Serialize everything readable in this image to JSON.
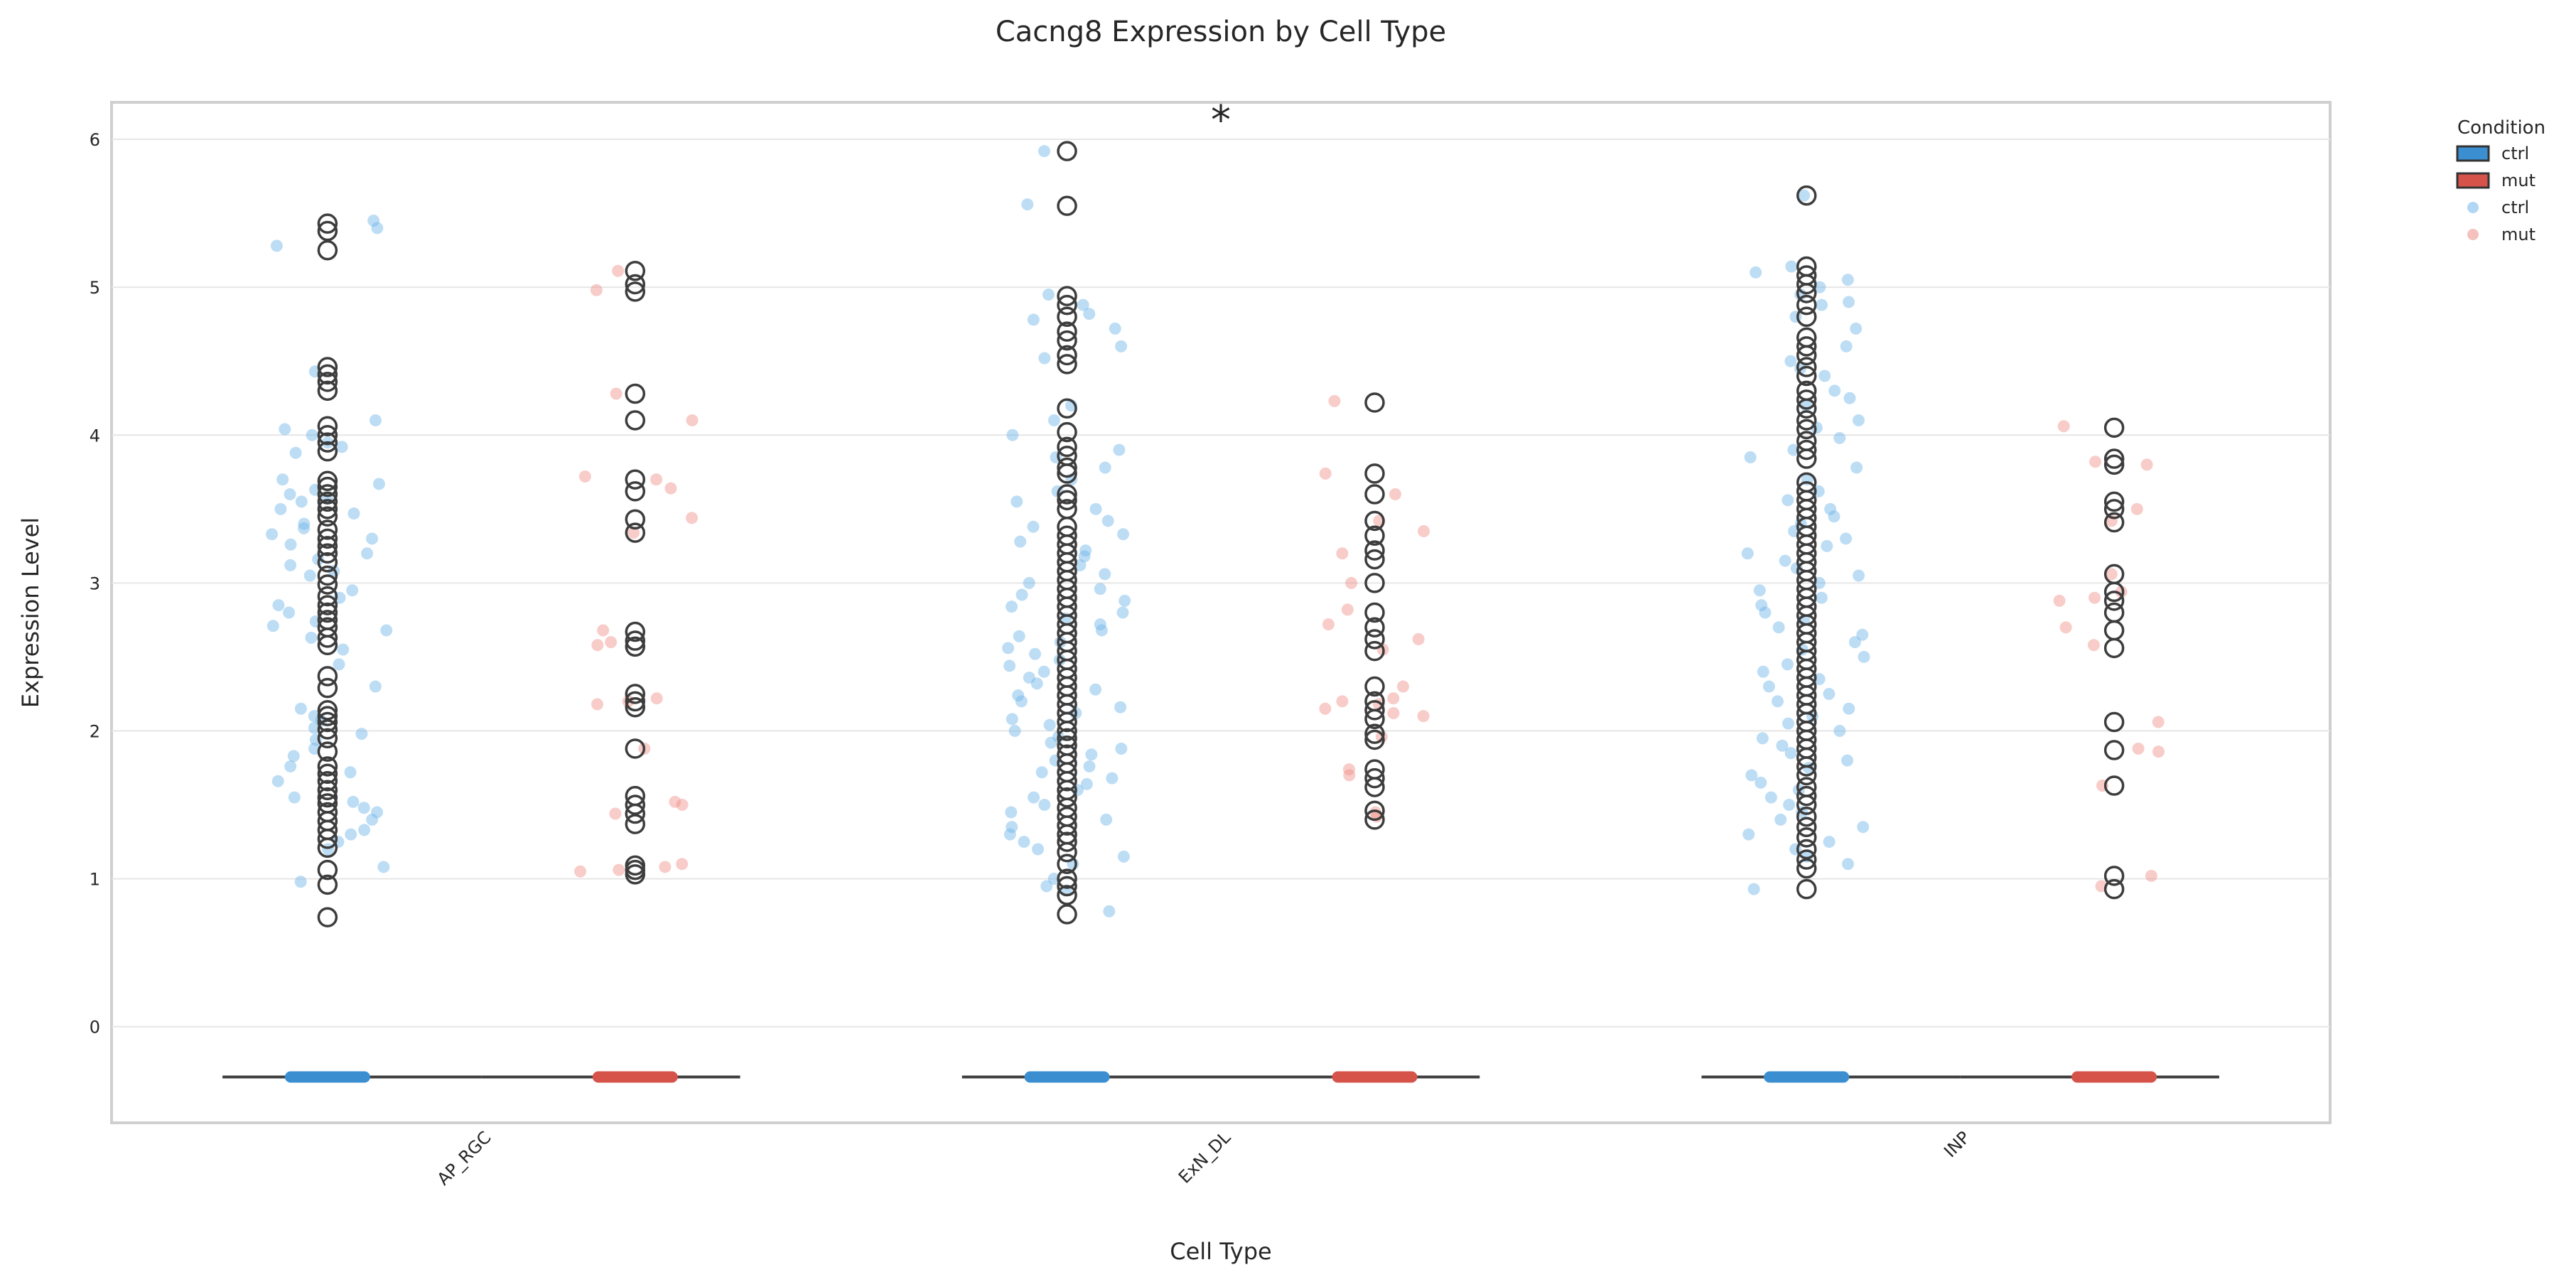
{
  "chart_data": {
    "type": "box+strip",
    "title": "Cacng8 Expression by Cell Type",
    "xlabel": "Cell Type",
    "ylabel": "Expression Level",
    "ylim": [
      -0.65,
      6.25
    ],
    "yticks": [
      0,
      1,
      2,
      3,
      4,
      5,
      6
    ],
    "grid": true,
    "categories": [
      "AP_RGC",
      "ExN_DL",
      "INP"
    ],
    "significance": [
      {
        "category": "ExN_DL",
        "label": "*"
      }
    ],
    "legend": {
      "title": "Condition",
      "position": "upper-right-outside",
      "entries": [
        {
          "label": "ctrl",
          "kind": "box",
          "color": "#3b8fd1"
        },
        {
          "label": "mut",
          "kind": "box",
          "color": "#d6534a"
        },
        {
          "label": "ctrl",
          "kind": "point",
          "color": "#8fc6ee"
        },
        {
          "label": "mut",
          "kind": "point",
          "color": "#f0a7a3"
        }
      ]
    },
    "colors": {
      "ctrl_box": "#3b8fd1",
      "mut_box": "#d6534a",
      "ctrl_point": "#6cb4e8",
      "mut_point": "#ef8f88",
      "whisker": "#3d3d3d",
      "outlier": "#3d3d3d"
    },
    "series": [
      {
        "name": "ctrl",
        "groups": [
          {
            "category": "AP_RGC",
            "box_level": -0.34,
            "outliers": [
              0.74,
              0.96,
              1.06,
              1.21,
              1.27,
              1.33,
              1.39,
              1.45,
              1.51,
              1.55,
              1.6,
              1.66,
              1.71,
              1.76,
              1.86,
              1.95,
              2.01,
              2.06,
              2.1,
              2.14,
              2.29,
              2.37,
              2.58,
              2.63,
              2.7,
              2.75,
              2.8,
              2.85,
              2.91,
              2.99,
              3.05,
              3.14,
              3.2,
              3.25,
              3.3,
              3.36,
              3.45,
              3.5,
              3.55,
              3.6,
              3.65,
              3.69,
              3.89,
              3.95,
              4.0,
              4.06,
              4.3,
              4.36,
              4.41,
              4.46,
              5.25,
              5.38,
              5.43
            ],
            "points": [
              5.45,
              5.4,
              5.28,
              4.43,
              4.1,
              4.04,
              4.0,
              3.95,
              3.92,
              3.88,
              3.7,
              3.67,
              3.63,
              3.6,
              3.57,
              3.55,
              3.5,
              3.47,
              3.4,
              3.37,
              3.33,
              3.3,
              3.26,
              3.2,
              3.16,
              3.12,
              3.08,
              3.05,
              2.95,
              2.9,
              2.85,
              2.8,
              2.74,
              2.71,
              2.68,
              2.63,
              2.55,
              2.45,
              2.3,
              2.15,
              2.1,
              2.07,
              2.02,
              1.98,
              1.94,
              1.88,
              1.83,
              1.76,
              1.72,
              1.66,
              1.55,
              1.52,
              1.48,
              1.45,
              1.4,
              1.33,
              1.3,
              1.25,
              1.2,
              1.08,
              0.98
            ]
          },
          {
            "category": "ExN_DL",
            "box_level": -0.34,
            "outliers": [
              0.76,
              0.89,
              0.95,
              1.0,
              1.1,
              1.18,
              1.25,
              1.3,
              1.36,
              1.42,
              1.48,
              1.55,
              1.6,
              1.66,
              1.72,
              1.78,
              1.84,
              1.9,
              1.95,
              2.0,
              2.06,
              2.12,
              2.18,
              2.24,
              2.3,
              2.36,
              2.42,
              2.48,
              2.54,
              2.6,
              2.66,
              2.72,
              2.78,
              2.84,
              2.9,
              2.96,
              3.02,
              3.08,
              3.14,
              3.2,
              3.26,
              3.32,
              3.38,
              3.5,
              3.56,
              3.6,
              3.74,
              3.78,
              3.86,
              3.92,
              4.02,
              4.18,
              4.48,
              4.54,
              4.64,
              4.7,
              4.8,
              4.88,
              4.94,
              5.55,
              5.92
            ],
            "points": [
              5.92,
              5.56,
              4.95,
              4.88,
              4.82,
              4.78,
              4.72,
              4.6,
              4.52,
              4.2,
              4.1,
              4.0,
              3.9,
              3.85,
              3.78,
              3.7,
              3.62,
              3.55,
              3.5,
              3.42,
              3.38,
              3.33,
              3.28,
              3.22,
              3.18,
              3.12,
              3.06,
              3.0,
              2.96,
              2.92,
              2.88,
              2.84,
              2.8,
              2.76,
              2.72,
              2.68,
              2.64,
              2.6,
              2.56,
              2.52,
              2.48,
              2.44,
              2.4,
              2.36,
              2.32,
              2.28,
              2.24,
              2.2,
              2.16,
              2.12,
              2.08,
              2.04,
              2.0,
              1.96,
              1.92,
              1.88,
              1.84,
              1.8,
              1.76,
              1.72,
              1.68,
              1.64,
              1.6,
              1.55,
              1.5,
              1.45,
              1.4,
              1.35,
              1.3,
              1.25,
              1.2,
              1.15,
              1.1,
              1.0,
              0.95,
              0.92,
              0.78
            ]
          },
          {
            "category": "INP",
            "box_level": -0.34,
            "outliers": [
              0.93,
              1.07,
              1.13,
              1.2,
              1.28,
              1.35,
              1.42,
              1.5,
              1.56,
              1.62,
              1.7,
              1.76,
              1.82,
              1.88,
              1.94,
              2.0,
              2.06,
              2.12,
              2.18,
              2.24,
              2.3,
              2.36,
              2.42,
              2.48,
              2.54,
              2.6,
              2.66,
              2.72,
              2.78,
              2.84,
              2.9,
              2.96,
              3.02,
              3.08,
              3.14,
              3.2,
              3.26,
              3.32,
              3.38,
              3.44,
              3.5,
              3.56,
              3.62,
              3.68,
              3.84,
              3.9,
              3.96,
              4.04,
              4.1,
              4.18,
              4.24,
              4.3,
              4.4,
              4.46,
              4.54,
              4.6,
              4.66,
              4.8,
              4.88,
              4.96,
              5.02,
              5.08,
              5.14,
              5.62
            ],
            "points": [
              5.62,
              5.14,
              5.1,
              5.05,
              5.0,
              4.95,
              4.9,
              4.88,
              4.8,
              4.72,
              4.6,
              4.5,
              4.45,
              4.4,
              4.3,
              4.25,
              4.2,
              4.1,
              4.05,
              3.98,
              3.9,
              3.85,
              3.78,
              3.7,
              3.62,
              3.56,
              3.5,
              3.45,
              3.4,
              3.35,
              3.3,
              3.25,
              3.2,
              3.15,
              3.1,
              3.05,
              3.0,
              2.95,
              2.9,
              2.85,
              2.8,
              2.75,
              2.7,
              2.65,
              2.6,
              2.55,
              2.5,
              2.45,
              2.4,
              2.35,
              2.3,
              2.25,
              2.2,
              2.15,
              2.1,
              2.05,
              2.0,
              1.95,
              1.9,
              1.85,
              1.8,
              1.75,
              1.7,
              1.65,
              1.6,
              1.55,
              1.5,
              1.45,
              1.4,
              1.35,
              1.3,
              1.25,
              1.2,
              1.15,
              1.1,
              0.93
            ]
          }
        ]
      },
      {
        "name": "mut",
        "groups": [
          {
            "category": "AP_RGC",
            "box_level": -0.34,
            "outliers": [
              1.03,
              1.06,
              1.09,
              1.37,
              1.44,
              1.5,
              1.56,
              1.88,
              2.16,
              2.2,
              2.25,
              2.57,
              2.61,
              2.67,
              3.34,
              3.43,
              3.62,
              3.7,
              4.1,
              4.28,
              4.97,
              5.02,
              5.11
            ],
            "points": [
              5.11,
              4.98,
              4.28,
              4.1,
              3.72,
              3.7,
              3.64,
              3.44,
              3.34,
              2.68,
              2.6,
              2.58,
              2.22,
              2.2,
              2.18,
              1.88,
              1.52,
              1.5,
              1.44,
              1.1,
              1.08,
              1.06,
              1.05
            ]
          },
          {
            "category": "ExN_DL",
            "box_level": -0.34,
            "outliers": [
              1.4,
              1.46,
              1.62,
              1.68,
              1.74,
              1.94,
              1.98,
              2.08,
              2.14,
              2.2,
              2.3,
              2.54,
              2.62,
              2.7,
              2.8,
              3.0,
              3.16,
              3.22,
              3.32,
              3.42,
              3.6,
              3.74,
              4.22
            ],
            "points": [
              4.23,
              3.74,
              3.6,
              3.42,
              3.35,
              3.2,
              3.0,
              2.82,
              2.72,
              2.62,
              2.55,
              2.3,
              2.22,
              2.2,
              2.18,
              2.15,
              2.12,
              2.1,
              1.96,
              1.74,
              1.7,
              1.45,
              1.42
            ]
          },
          {
            "category": "INP",
            "box_level": -0.34,
            "outliers": [
              0.93,
              1.02,
              1.63,
              1.87,
              2.06,
              2.56,
              2.68,
              2.8,
              2.88,
              2.94,
              3.06,
              3.41,
              3.5,
              3.55,
              3.8,
              3.84,
              4.05
            ],
            "points": [
              4.06,
              3.82,
              3.8,
              3.5,
              3.42,
              3.06,
              2.94,
              2.9,
              2.88,
              2.7,
              2.58,
              2.06,
              1.88,
              1.86,
              1.63,
              1.02,
              0.95
            ]
          }
        ]
      }
    ]
  }
}
